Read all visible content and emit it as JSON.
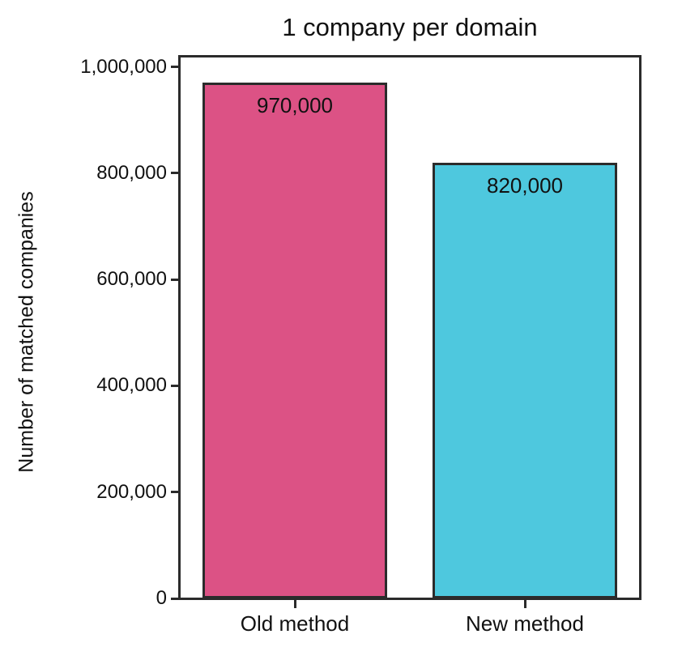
{
  "chart_data": {
    "type": "bar",
    "title": "1 company per domain",
    "xlabel": "",
    "ylabel": "Number of matched companies",
    "categories": [
      "Old method",
      "New method"
    ],
    "values": [
      970000,
      820000
    ],
    "bar_labels": [
      "970,000",
      "820,000"
    ],
    "bar_colors": [
      "#DC5285",
      "#4EC8DE"
    ],
    "bar_edge_color": "#2b2b2b",
    "ylim": [
      0,
      1000000
    ],
    "yticks": [
      0,
      200000,
      400000,
      600000,
      800000,
      1000000
    ],
    "ytick_labels": [
      "0",
      "200,000",
      "400,000",
      "600,000",
      "800,000",
      "1,000,000"
    ],
    "grid": false,
    "legend_position": "none"
  },
  "colors": {
    "background": "#ffffff",
    "axis": "#2b2b2b",
    "text": "#111111"
  }
}
